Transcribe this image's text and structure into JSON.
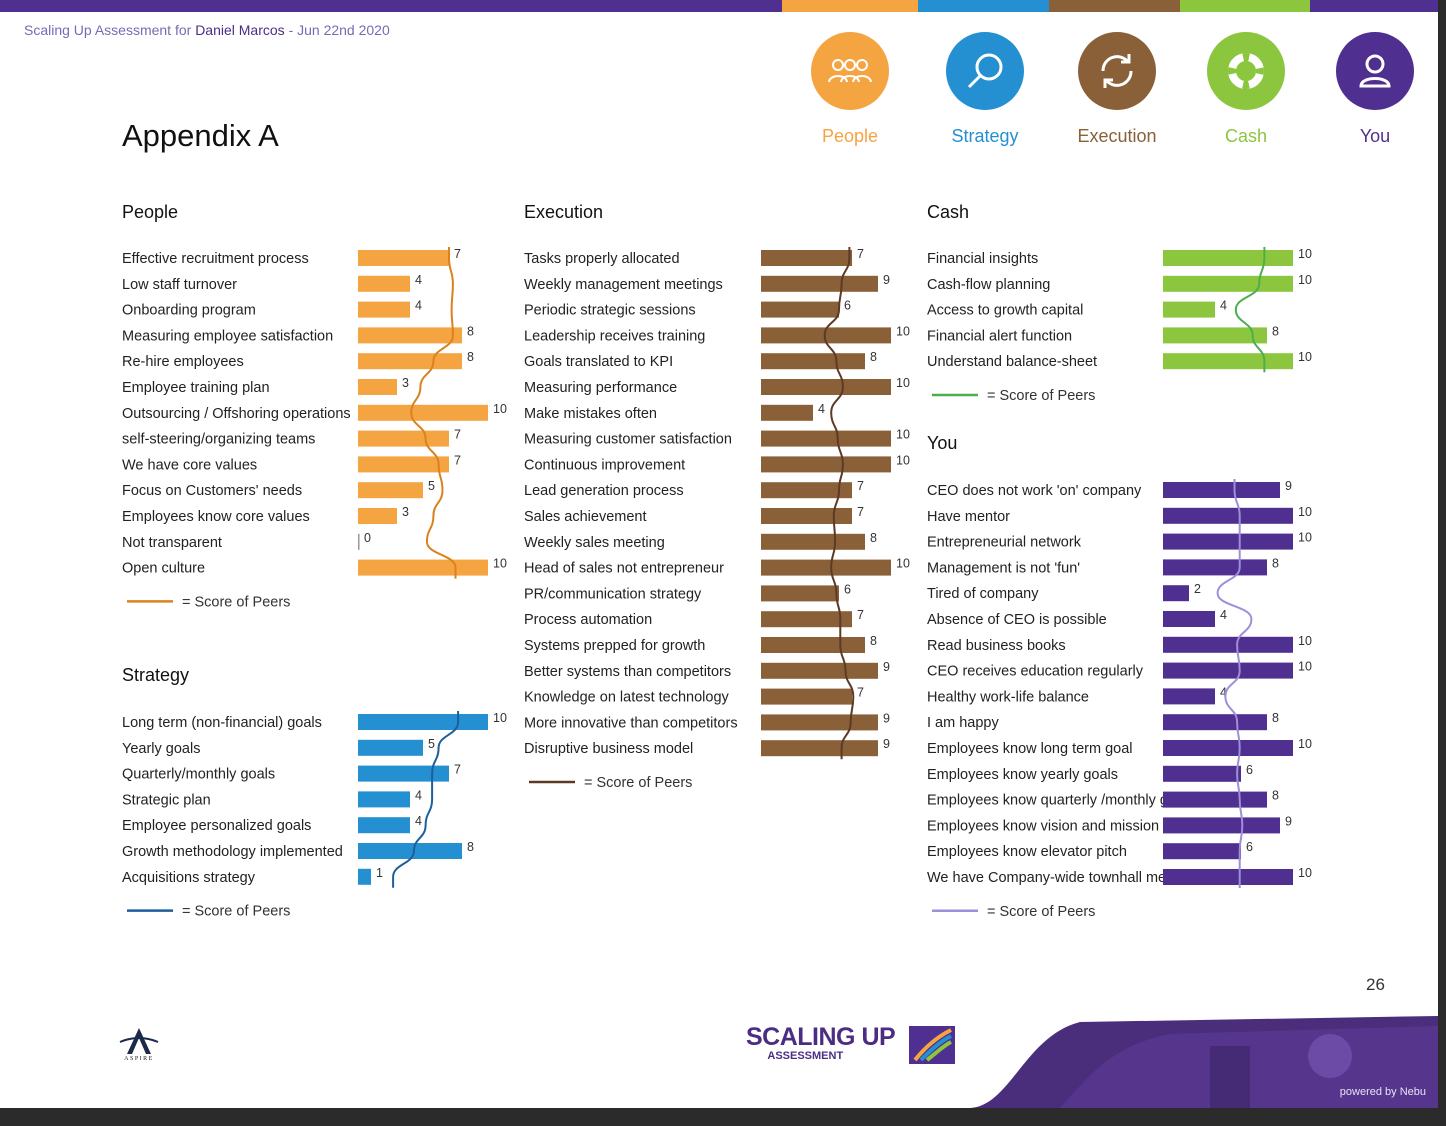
{
  "header": {
    "prefix": "Scaling Up Assessment for",
    "name": "Daniel Marcos",
    "date_text": "- Jun 22nd 2020"
  },
  "title": "Appendix A",
  "page_number": "26",
  "footer": {
    "logo_main": "SCALING UP",
    "logo_sub": "ASSESSMENT",
    "aspire": "ASPIRE",
    "powered": "powered by Nebu"
  },
  "colors": {
    "people": "#f5a442",
    "strategy": "#2490d2",
    "execution": "#8a6038",
    "cash": "#8cc63f",
    "you": "#4f2f8f"
  },
  "categories": [
    {
      "label": "People",
      "icon": "people-icon",
      "color": "#f5a442"
    },
    {
      "label": "Strategy",
      "icon": "magnifier-icon",
      "color": "#2490d2"
    },
    {
      "label": "Execution",
      "icon": "refresh-icon",
      "color": "#8a6038"
    },
    {
      "label": "Cash",
      "icon": "lifebuoy-icon",
      "color": "#8cc63f"
    },
    {
      "label": "You",
      "icon": "user-icon",
      "color": "#4f2f8f"
    }
  ],
  "legend_text": "= Score of Peers",
  "chart_data": [
    {
      "type": "bar",
      "title": "People",
      "color": "#f5a442",
      "peer_color": "#d9821e",
      "xlim": [
        0,
        10
      ],
      "categories": [
        "Effective recruitment process",
        "Low staff turnover",
        "Onboarding program",
        "Measuring employee satisfaction",
        "Re-hire employees",
        "Employee training plan",
        "Outsourcing / Offshoring operations",
        "self-steering/organizing teams",
        "We have core values",
        "Focus on Customers' needs",
        "Employees know core values",
        "Not transparent",
        "Open culture"
      ],
      "values": [
        7,
        4,
        4,
        8,
        8,
        3,
        10,
        7,
        7,
        5,
        3,
        0,
        10
      ],
      "peer_values": [
        7,
        7.3,
        7.2,
        7.3,
        5.8,
        4.8,
        4.1,
        5.2,
        6.2,
        6.5,
        5.8,
        5.3,
        7.5
      ]
    },
    {
      "type": "bar",
      "title": "Strategy",
      "color": "#2490d2",
      "peer_color": "#1f5e9c",
      "xlim": [
        0,
        10
      ],
      "categories": [
        "Long term (non-financial) goals",
        "Yearly goals",
        "Quarterly/monthly goals",
        "Strategic plan",
        "Employee personalized goals",
        "Growth methodology implemented",
        "Acquisitions strategy"
      ],
      "values": [
        10,
        5,
        7,
        4,
        4,
        8,
        1
      ],
      "peer_values": [
        7.7,
        6.2,
        5.7,
        5.7,
        5.2,
        4.3,
        2.7
      ]
    },
    {
      "type": "bar",
      "title": "Execution",
      "color": "#8a6038",
      "peer_color": "#5c3a26",
      "xlim": [
        0,
        10
      ],
      "categories": [
        "Tasks properly allocated",
        "Weekly management meetings",
        "Periodic strategic sessions",
        "Leadership receives training",
        "Goals translated to KPI",
        "Measuring performance",
        "Make mistakes often",
        "Measuring customer satisfaction",
        "Continuous improvement",
        "Lead generation process",
        "Sales achievement",
        "Weekly sales meeting",
        "Head of sales not entrepreneur",
        "PR/communication strategy",
        "Process automation",
        "Systems prepped for growth",
        "Better systems than competitors",
        "Knowledge on latest technology",
        "More innovative than competitors",
        "Disruptive business model"
      ],
      "values": [
        7,
        9,
        6,
        10,
        8,
        10,
        4,
        10,
        10,
        7,
        7,
        8,
        10,
        6,
        7,
        8,
        9,
        7,
        9,
        9
      ],
      "peer_values": [
        6.8,
        6.2,
        6.0,
        4.9,
        5.8,
        6.3,
        5.4,
        5.9,
        6.3,
        6.0,
        5.6,
        5.7,
        5.4,
        5.8,
        6.1,
        6.1,
        6.5,
        7.1,
        6.9,
        6.2
      ]
    },
    {
      "type": "bar",
      "title": "Cash",
      "color": "#8cc63f",
      "peer_color": "#4bae4f",
      "xlim": [
        0,
        10
      ],
      "categories": [
        "Financial insights",
        "Cash-flow planning",
        "Access to growth capital",
        "Financial alert function",
        "Understand balance-sheet"
      ],
      "values": [
        10,
        10,
        4,
        8,
        10
      ],
      "peer_values": [
        7.8,
        7.4,
        5.6,
        6.9,
        7.8
      ]
    },
    {
      "type": "bar",
      "title": "You",
      "color": "#4f2f8f",
      "peer_color": "#9d8fd9",
      "xlim": [
        0,
        10
      ],
      "categories": [
        "CEO does not work 'on' company",
        "Have mentor",
        "Entrepreneurial network",
        "Management is not 'fun'",
        "Tired of company",
        "Absence of CEO is possible",
        "Read business books",
        "CEO receives education regularly",
        "Healthy work-life balance",
        "I am happy",
        "Employees know long term goal",
        "Employees know yearly goals",
        "Employees know quarterly /monthly goals",
        "Employees know vision and mission",
        "Employees know elevator pitch",
        "We have Company-wide townhall meetings"
      ],
      "values": [
        9,
        10,
        10,
        8,
        2,
        4,
        10,
        10,
        4,
        8,
        10,
        6,
        8,
        9,
        6,
        10
      ],
      "peer_values": [
        5.5,
        5.9,
        5.9,
        5.9,
        4.2,
        6.8,
        5.7,
        5.9,
        4.8,
        5.7,
        5.9,
        5.7,
        5.9,
        6.1,
        5.9,
        5.9
      ]
    }
  ]
}
